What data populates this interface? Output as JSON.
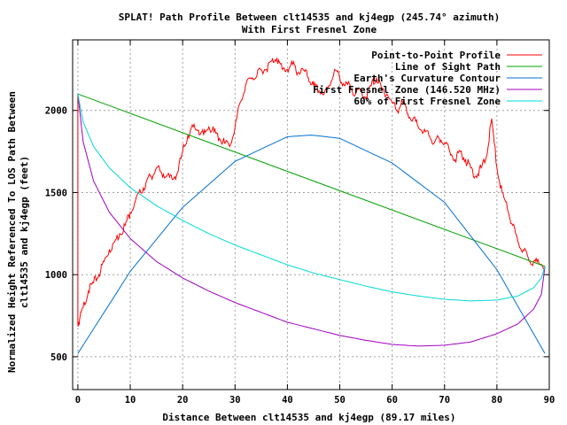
{
  "chart_data": {
    "type": "line",
    "title": "SPLAT! Path Profile Between clt14535 and kj4egp (245.74° azimuth)",
    "subtitle": "With First Fresnel Zone",
    "xlabel": "Distance Between clt14535 and kj4egp (89.17 miles)",
    "ylabel_line1": "Normalized Height Referenced To LOS Path Between",
    "ylabel_line2": "clt14535 and kj4egp (feet)",
    "xlim": [
      -1,
      90
    ],
    "ylim": [
      300,
      2430
    ],
    "x_ticks": [
      0,
      10,
      20,
      30,
      40,
      50,
      60,
      70,
      80,
      90
    ],
    "y_ticks": [
      500,
      1000,
      1500,
      2000
    ],
    "grid": true,
    "legend_position": "top-right",
    "series": [
      {
        "name": "Point-to-Point Profile",
        "color": "#ff0000",
        "x": [
          0,
          0,
          0.3,
          1,
          2,
          3,
          4,
          5,
          6,
          7,
          8,
          9,
          10,
          11,
          12,
          13,
          14,
          15,
          16,
          17,
          18,
          19,
          20,
          21,
          22,
          23,
          24,
          25,
          26,
          27,
          28,
          29,
          30,
          31,
          32,
          33,
          34,
          35,
          36,
          37,
          38,
          39,
          40,
          41,
          42,
          43,
          44,
          45,
          46,
          47,
          48,
          49,
          50,
          51,
          52,
          53,
          54,
          55,
          56,
          57,
          58,
          59,
          60,
          61,
          62,
          63,
          64,
          65,
          66,
          67,
          68,
          69,
          70,
          71,
          72,
          73,
          74,
          75,
          76,
          77,
          78,
          79,
          80,
          81,
          82,
          83,
          84,
          85,
          86,
          87,
          88,
          89.17
        ],
        "y": [
          2100,
          700,
          720,
          800,
          900,
          950,
          1000,
          1080,
          1150,
          1200,
          1250,
          1300,
          1380,
          1450,
          1500,
          1560,
          1600,
          1650,
          1620,
          1600,
          1580,
          1620,
          1750,
          1850,
          1900,
          1880,
          1850,
          1900,
          1870,
          1830,
          1800,
          1780,
          1900,
          2050,
          2150,
          2200,
          2200,
          2250,
          2250,
          2300,
          2320,
          2250,
          2250,
          2280,
          2230,
          2250,
          2200,
          2150,
          2120,
          2100,
          2150,
          2250,
          2200,
          2150,
          2150,
          2100,
          2120,
          2080,
          2150,
          2200,
          2130,
          2100,
          2050,
          2000,
          2050,
          1980,
          1950,
          1900,
          1870,
          1850,
          1800,
          1830,
          1800,
          1750,
          1700,
          1750,
          1700,
          1650,
          1600,
          1650,
          1720,
          1950,
          1650,
          1500,
          1400,
          1300,
          1200,
          1150,
          1100,
          1080,
          1070,
          1050
        ]
      },
      {
        "name": "Line of Sight Path",
        "color": "#00a000",
        "x": [
          0,
          89.17
        ],
        "y": [
          2100,
          1050
        ]
      },
      {
        "name": "Earth's Curvature Contour",
        "color": "#0070d0",
        "x": [
          0,
          10,
          20,
          30,
          40,
          44.6,
          50,
          60,
          70,
          80,
          89.17
        ],
        "y": [
          520,
          1020,
          1410,
          1690,
          1840,
          1850,
          1830,
          1680,
          1440,
          1030,
          520
        ]
      },
      {
        "name": "First Fresnel Zone (146.520 MHz)",
        "color": "#a000c0",
        "x": [
          0,
          1,
          3,
          6,
          10,
          15,
          20,
          25,
          30,
          35,
          40,
          45,
          50,
          55,
          60,
          65,
          70,
          75,
          80,
          84,
          87,
          88.5,
          89.17
        ],
        "y": [
          2100,
          1810,
          1570,
          1380,
          1220,
          1080,
          980,
          900,
          830,
          770,
          710,
          670,
          630,
          600,
          575,
          565,
          570,
          590,
          640,
          700,
          790,
          880,
          1050
        ]
      },
      {
        "name": "60% of First Fresnel Zone",
        "color": "#00d8d8",
        "x": [
          0,
          1,
          3,
          6,
          10,
          15,
          20,
          25,
          30,
          35,
          40,
          45,
          50,
          55,
          60,
          65,
          70,
          75,
          80,
          84,
          87,
          88.5,
          89.17
        ],
        "y": [
          2100,
          1930,
          1780,
          1650,
          1530,
          1420,
          1330,
          1250,
          1180,
          1120,
          1060,
          1010,
          970,
          930,
          895,
          870,
          850,
          840,
          845,
          870,
          920,
          980,
          1050
        ]
      }
    ]
  }
}
